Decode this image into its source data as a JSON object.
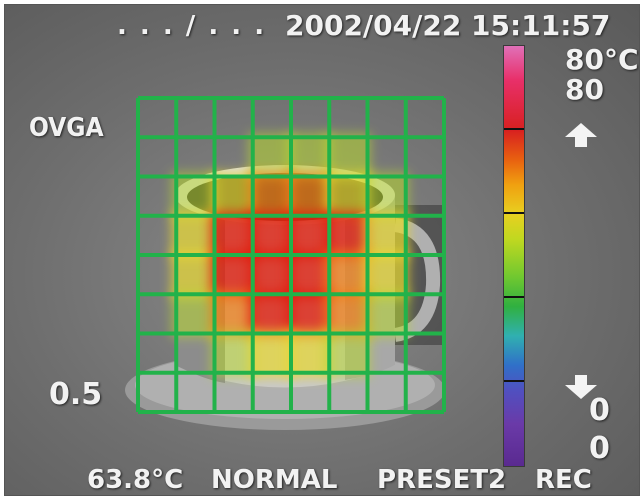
{
  "osd": {
    "mode": ". . . / . . .",
    "datetime": "2002/04/22  15:11:57",
    "palette": "OVGA",
    "emissivity": "0.5",
    "scale_max_unit": "80°C",
    "scale_max_value": "80",
    "scale_min_value_1": "0",
    "scale_min_value_2": "0",
    "spot_temp": "63.8°C",
    "gain_mode": "NORMAL",
    "preset": "PRESET2",
    "record": "REC"
  },
  "colors": {
    "grid": "#22b24a",
    "hot": "#e02010",
    "warm": "#f08018",
    "mid": "#e8d830",
    "cool": "#b8d830"
  },
  "thermal_grid": {
    "cols": 8,
    "rows": 8,
    "levels": [
      [
        0,
        0,
        0,
        0,
        0,
        0,
        0,
        0
      ],
      [
        0,
        0,
        0,
        1,
        1,
        1,
        0,
        0
      ],
      [
        0,
        1,
        2,
        3,
        3,
        2,
        1,
        0
      ],
      [
        0,
        2,
        4,
        4,
        4,
        4,
        2,
        0
      ],
      [
        0,
        2,
        4,
        4,
        4,
        3,
        2,
        0
      ],
      [
        0,
        1,
        3,
        4,
        4,
        3,
        1,
        0
      ],
      [
        0,
        0,
        1,
        2,
        2,
        1,
        0,
        0
      ],
      [
        0,
        0,
        0,
        0,
        0,
        0,
        0,
        0
      ]
    ]
  },
  "icons": {
    "scale_up": "arrow-up-icon",
    "scale_down": "arrow-down-icon"
  }
}
